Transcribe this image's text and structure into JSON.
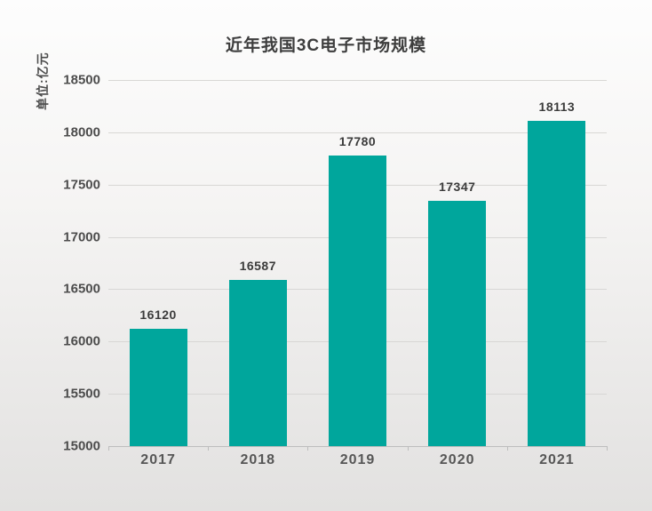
{
  "page": {
    "background_top": "#fdfdfd",
    "background_bottom": "#e2e1e0"
  },
  "chart_data": {
    "type": "bar",
    "title": "近年我国3C电子市场规模",
    "unit_label": "单位:亿元",
    "categories": [
      "2017",
      "2018",
      "2019",
      "2020",
      "2021"
    ],
    "values": [
      16120,
      16587,
      17780,
      17347,
      18113
    ],
    "value_labels": [
      "16120",
      "16587",
      "17780",
      "17347",
      "18113"
    ],
    "ylim": [
      15000,
      18500
    ],
    "yticks": [
      15000,
      15500,
      16000,
      16500,
      17000,
      17500,
      18000,
      18500
    ],
    "grid": true,
    "legend": "none",
    "colors": {
      "bar": "#00a69c",
      "title": "#3d3d3d",
      "value_label": "#3b3b3b",
      "y_tick_label": "#4c4c4c",
      "x_tick_label": "#565656",
      "unit_label": "#4c4c4c",
      "gridline": "#d8d7d5",
      "axis_line": "#bdbdbd"
    }
  }
}
